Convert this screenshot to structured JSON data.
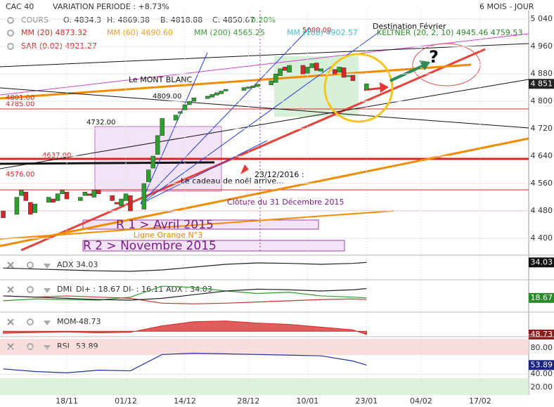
{
  "header": {
    "index": "CAC 40",
    "variation": "VARIATION PERIODE : +8.73%",
    "period": "6 MOIS - JOUR"
  },
  "legend": [
    {
      "text": "COURS",
      "color": "#888888"
    },
    {
      "text": "O: 4834.3",
      "color": "#333333"
    },
    {
      "text": "H: 4869.38",
      "color": "#333333"
    },
    {
      "text": "B: 4818.88",
      "color": "#333333"
    },
    {
      "text": "C: 4850.67",
      "color": "#333333"
    },
    {
      "text": "0.20%",
      "color": "#2a9d2a"
    },
    {
      "text": "MM (20)  4873.32",
      "color": "#d62728"
    },
    {
      "text": "MM (60)  4690.60",
      "color": "#f0a020"
    },
    {
      "text": "MM (200)  4565.25",
      "color": "#3a9a3a"
    },
    {
      "text": "MM (100)  4902.57",
      "color": "#40c0d0"
    },
    {
      "text": "KELTNER (20, 2, 10)  4945.46  4759.53",
      "color": "#2a8a2a"
    },
    {
      "text": "SAR (0.02)  4921.27",
      "color": "#d62728"
    }
  ],
  "annotations": [
    "Le MONT BLANC",
    "4809.00",
    "4732.00",
    "23/12/2016 :",
    "Le cadeau de noël arrive...",
    "Clôture du 31 Décembre 2015",
    "R 1 > Avril 2015",
    "R 2 > Novembre 2015",
    "Ligne Orange N°3",
    "Destination Février",
    "?",
    "5000.00",
    "4801.00",
    "4785.00",
    "4637.00",
    "4576.00"
  ],
  "xticks": [
    "18/11",
    "01/12",
    "14/12",
    "28/12",
    "10/01",
    "23/01",
    "04/02",
    "17/02"
  ],
  "chart_data": [
    {
      "type": "candlestick",
      "name": "COURS",
      "price_tag": "4 851",
      "ylim": [
        4357,
        5065
      ],
      "yticks": [
        {
          "value": 4400,
          "label": "4 400"
        },
        {
          "value": 4480,
          "label": "4 480"
        },
        {
          "value": 4560,
          "label": "4 560"
        },
        {
          "value": 4640,
          "label": "4 640"
        },
        {
          "value": 4720,
          "label": "4 720"
        },
        {
          "value": 4800,
          "label": "4 800"
        },
        {
          "value": 4880,
          "label": "4 880"
        },
        {
          "value": 4960,
          "label": "4 960"
        },
        {
          "value": 5040,
          "label": "5 040"
        }
      ],
      "up_color": "#2ca02c",
      "down_color": "#d62728",
      "x": [
        "04/11",
        "07/11",
        "08/11",
        "09/11",
        "10/11",
        "11/11",
        "14/11",
        "15/11",
        "16/11",
        "17/11",
        "18/11",
        "21/11",
        "22/11",
        "23/11",
        "24/11",
        "25/11",
        "28/11",
        "29/11",
        "30/11",
        "01/12",
        "02/12",
        "05/12",
        "06/12",
        "07/12",
        "08/12",
        "09/12",
        "12/12",
        "13/12",
        "14/12",
        "15/12",
        "16/12",
        "19/12",
        "20/12",
        "21/12",
        "22/12",
        "23/12",
        "27/12",
        "28/12",
        "29/12",
        "30/12",
        "02/01",
        "03/01",
        "04/01",
        "05/01",
        "06/01",
        "09/01",
        "10/01",
        "11/01",
        "12/01",
        "13/01",
        "16/01",
        "17/01",
        "18/01",
        "19/01",
        "20/01",
        "23/01"
      ],
      "open": [
        4480,
        4470,
        4525,
        4535,
        4505,
        4475,
        4505,
        4515,
        4510,
        4530,
        4535,
        4510,
        4525,
        4530,
        4520,
        4540,
        4525,
        4505,
        4495,
        4510,
        4525,
        4485,
        4565,
        4605,
        4645,
        4700,
        4745,
        4765,
        4775,
        4790,
        4800,
        4808,
        4812,
        4818,
        4822,
        4830,
        4832,
        4838,
        4840,
        4843,
        4848,
        4855,
        4875,
        4900,
        4885,
        4905,
        4882,
        4898,
        4912,
        4888,
        4893,
        4885,
        4898,
        4872,
        4876,
        4834
      ],
      "close": [
        4460,
        4520,
        4540,
        4510,
        4470,
        4500,
        4520,
        4505,
        4530,
        4540,
        4515,
        4520,
        4535,
        4525,
        4540,
        4530,
        4510,
        4500,
        4515,
        4530,
        4480,
        4560,
        4600,
        4640,
        4700,
        4750,
        4760,
        4770,
        4790,
        4800,
        4810,
        4815,
        4820,
        4825,
        4830,
        4835,
        4840,
        4842,
        4845,
        4850,
        4860,
        4880,
        4895,
        4890,
        4905,
        4880,
        4900,
        4910,
        4890,
        4895,
        4880,
        4900,
        4870,
        4875,
        4860,
        4851
      ]
    },
    {
      "type": "line",
      "name": "ADX",
      "label": "34.03",
      "ylim": [
        0,
        45
      ],
      "x": [
        "04/11",
        "11/11",
        "18/11",
        "25/11",
        "02/12",
        "09/12",
        "16/12",
        "23/12",
        "30/12",
        "06/01",
        "13/01",
        "20/01",
        "23/01"
      ],
      "series": [
        {
          "name": "ADX",
          "color": "#222222",
          "values": [
            22,
            20,
            18,
            16,
            15,
            18,
            24,
            30,
            33,
            32,
            30,
            32,
            34.03
          ]
        }
      ],
      "tag": "34.03",
      "tag_color": "#111111"
    },
    {
      "type": "line",
      "name": "DMI",
      "label": "DI+ : 18.67 DI- : 16.11 ADX : 34.03",
      "ylim": [
        0,
        45
      ],
      "x": [
        "04/11",
        "11/11",
        "18/11",
        "25/11",
        "02/12",
        "09/12",
        "16/12",
        "23/12",
        "30/12",
        "06/01",
        "13/01",
        "20/01",
        "23/01"
      ],
      "series": [
        {
          "name": "DI+",
          "color": "#2a9d2a",
          "values": [
            14,
            17,
            16,
            15,
            20,
            38,
            36,
            30,
            26,
            28,
            22,
            20,
            18.67
          ]
        },
        {
          "name": "DI-",
          "color": "#c0392b",
          "values": [
            22,
            20,
            22,
            20,
            18,
            10,
            9,
            10,
            12,
            14,
            16,
            17,
            16.11
          ]
        },
        {
          "name": "ADX",
          "color": "#222222",
          "values": [
            22,
            20,
            18,
            16,
            15,
            18,
            24,
            30,
            33,
            32,
            30,
            32,
            34.03
          ]
        }
      ],
      "tag": "18.67",
      "tag_color": "#2a8a2a"
    },
    {
      "type": "area",
      "name": "MOM",
      "label": "-48.73",
      "ylim": [
        -60,
        250
      ],
      "x": [
        "04/11",
        "11/11",
        "18/11",
        "25/11",
        "02/12",
        "09/12",
        "16/12",
        "23/12",
        "30/12",
        "06/01",
        "13/01",
        "20/01",
        "23/01"
      ],
      "series": [
        {
          "name": "MOM",
          "color": "#d62728",
          "values": [
            -30,
            -20,
            -10,
            -25,
            -15,
            80,
            140,
            150,
            120,
            100,
            60,
            20,
            -48.73
          ]
        }
      ],
      "tag": "-48.73",
      "tag_color": "#8b1a1a"
    },
    {
      "type": "line",
      "name": "RSI",
      "label": "53.89",
      "ylim": [
        8,
        94
      ],
      "yticks": [
        {
          "value": 80,
          "label": "80.00"
        },
        {
          "value": 40,
          "label": "40.00"
        },
        {
          "value": 20,
          "label": "20.00"
        }
      ],
      "x": [
        "04/11",
        "11/11",
        "18/11",
        "25/11",
        "02/12",
        "09/12",
        "16/12",
        "23/12",
        "30/12",
        "06/01",
        "13/01",
        "20/01",
        "23/01"
      ],
      "series": [
        {
          "name": "RSI",
          "color": "#2030a0",
          "values": [
            48,
            44,
            42,
            46,
            45,
            70,
            72,
            71,
            70,
            69,
            68,
            60,
            53.89
          ]
        }
      ],
      "tag": "53.89",
      "tag_color": "#1a237e"
    }
  ]
}
